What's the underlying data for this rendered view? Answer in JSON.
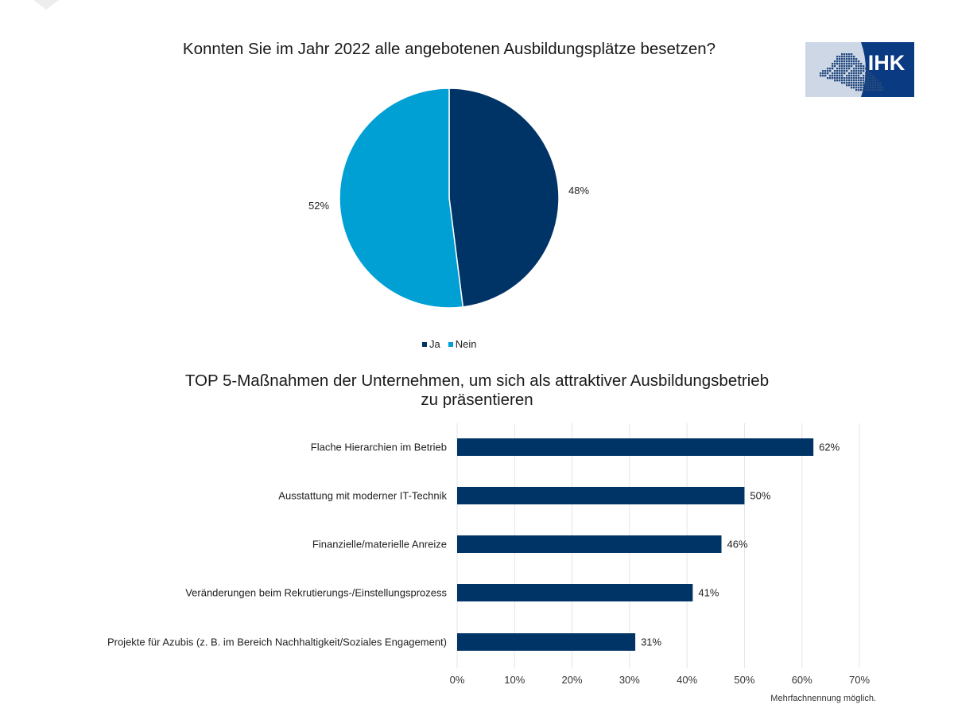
{
  "logo": {
    "text": "IHK",
    "colors": {
      "dark": "#0a3a82",
      "light": "#cdd7e6",
      "mark": "#24497f"
    }
  },
  "colors": {
    "dark_blue": "#003366",
    "light_blue": "#009fd4",
    "grid": "#e4e4e4",
    "text": "#222222"
  },
  "chart_data": [
    {
      "type": "pie",
      "title": "Konnten Sie im Jahr 2022 alle angebotenen Ausbildungsplätze besetzen?",
      "slices": [
        {
          "label": "Ja",
          "value": 48,
          "display": "48%",
          "color": "#003366"
        },
        {
          "label": "Nein",
          "value": 52,
          "display": "52%",
          "color": "#009fd4"
        }
      ],
      "legend": {
        "position": "bottom",
        "entries": [
          "Ja",
          "Nein"
        ]
      }
    },
    {
      "type": "bar",
      "orientation": "horizontal",
      "title_line1": "TOP 5-Maßnahmen der Unternehmen, um sich als attraktiver Ausbildungsbetrieb",
      "title_line2": "zu präsentieren",
      "categories": [
        "Flache Hierarchien im Betrieb",
        "Ausstattung mit moderner IT-Technik",
        "Finanzielle/materielle Anreize",
        "Veränderungen beim Rekrutierungs-/Einstellungsprozess",
        "Projekte für Azubis (z. B. im Bereich Nachhaltigkeit/Soziales Engagement)"
      ],
      "values": [
        62,
        50,
        46,
        41,
        31
      ],
      "value_labels": [
        "62%",
        "50%",
        "46%",
        "41%",
        "31%"
      ],
      "xlim": [
        0,
        70
      ],
      "xticks": [
        0,
        10,
        20,
        30,
        40,
        50,
        60,
        70
      ],
      "xtick_labels": [
        "0%",
        "10%",
        "20%",
        "30%",
        "40%",
        "50%",
        "60%",
        "70%"
      ],
      "grid": true,
      "color": "#003366",
      "footnote": "Mehrfachnennung möglich."
    }
  ]
}
